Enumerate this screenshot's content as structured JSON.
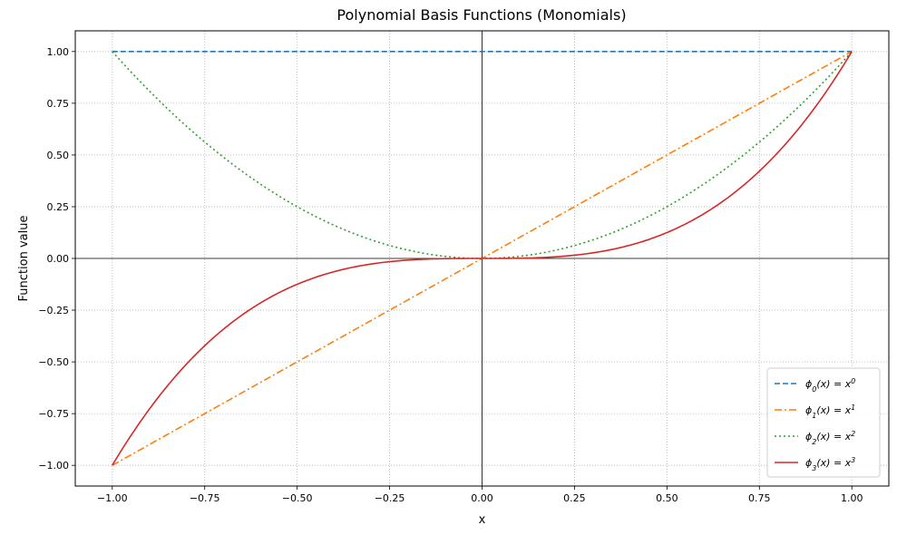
{
  "chart_data": {
    "type": "line",
    "title": "Polynomial Basis Functions (Monomials)",
    "xlabel": "x",
    "ylabel": "Function value",
    "xlim": [
      -1.1,
      1.1
    ],
    "ylim": [
      -1.1,
      1.1
    ],
    "xticks": [
      -1.0,
      -0.75,
      -0.5,
      -0.25,
      0.0,
      0.25,
      0.5,
      0.75,
      1.0
    ],
    "yticks": [
      -1.0,
      -0.75,
      -0.5,
      -0.25,
      0.0,
      0.25,
      0.5,
      0.75,
      1.0
    ],
    "xtick_labels": [
      "−1.00",
      "−0.75",
      "−0.50",
      "−0.25",
      "0.00",
      "0.25",
      "0.50",
      "0.75",
      "1.00"
    ],
    "ytick_labels": [
      "−1.00",
      "−0.75",
      "−0.50",
      "−0.25",
      "0.00",
      "0.25",
      "0.50",
      "0.75",
      "1.00"
    ],
    "grid": true,
    "legend_position": "lower-right",
    "x_domain": [
      -1.0,
      1.0
    ],
    "series": [
      {
        "name_base": "ϕ",
        "name_sub": "0",
        "name_rest": "(x) = x",
        "name_sup": "0",
        "power": 0,
        "color": "#1f77b4",
        "style": "dashed"
      },
      {
        "name_base": "ϕ",
        "name_sub": "1",
        "name_rest": "(x) = x",
        "name_sup": "1",
        "power": 1,
        "color": "#ff7f0e",
        "style": "dashdot"
      },
      {
        "name_base": "ϕ",
        "name_sub": "2",
        "name_rest": "(x) = x",
        "name_sup": "2",
        "power": 2,
        "color": "#2ca02c",
        "style": "dotted"
      },
      {
        "name_base": "ϕ",
        "name_sub": "3",
        "name_rest": "(x) = x",
        "name_sup": "3",
        "power": 3,
        "color": "#d62728",
        "style": "solid"
      }
    ]
  }
}
